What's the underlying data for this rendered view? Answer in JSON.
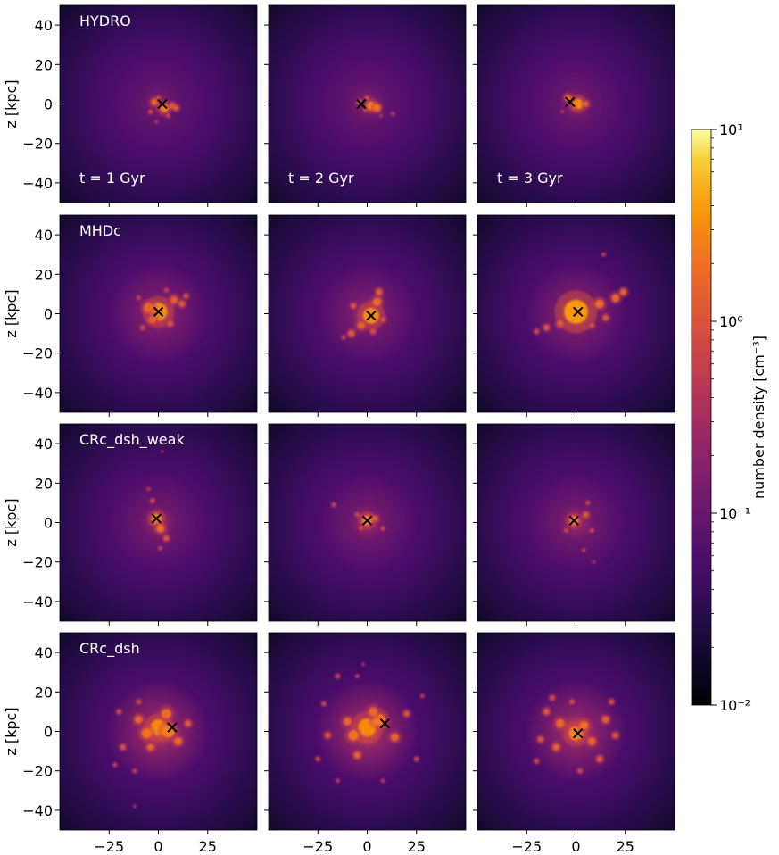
{
  "chart_data": {
    "type": "heatmap",
    "grid": {
      "rows": 4,
      "cols": 3
    },
    "xlabel": "",
    "ylabel": "z [kpc]",
    "xlim": [
      -50,
      50
    ],
    "ylim": [
      -50,
      50
    ],
    "xticks": [
      -25,
      0,
      25
    ],
    "yticks": [
      -40,
      -20,
      0,
      20,
      40
    ],
    "x_tick_labels": [
      "−25",
      "0",
      "25"
    ],
    "y_tick_labels": [
      "−40",
      "−20",
      "0",
      "20",
      "40"
    ],
    "row_labels": [
      "HYDRO",
      "MHDc",
      "CRc_dsh_weak",
      "CRc_dsh"
    ],
    "time_labels": [
      "t = 1 Gyr",
      "t = 2 Gyr",
      "t = 3 Gyr"
    ],
    "colorbar": {
      "label": "number density [cm⁻³]",
      "scale": "log",
      "range": [
        0.01,
        10
      ],
      "cmap": "inferno",
      "tick_labels": [
        "10⁻²",
        "10⁻¹",
        "10⁰",
        "10¹"
      ]
    },
    "marker": "x",
    "marker_color": "#000000",
    "panels": [
      {
        "row": 0,
        "col": 0,
        "marker": [
          2,
          0
        ],
        "halo": 0.4,
        "blobs": [
          [
            3,
            -2,
            2.2,
            3.2
          ],
          [
            -2,
            1,
            1.6,
            2.5
          ],
          [
            7,
            -1,
            1.5,
            2.2
          ],
          [
            -4,
            -4,
            1,
            1.6
          ],
          [
            5,
            -6,
            0.9,
            1.5
          ],
          [
            -1,
            -9,
            0.7,
            1.3
          ],
          [
            9,
            -2,
            1.3,
            2.0
          ],
          [
            0,
            3,
            1.0,
            1.6
          ]
        ]
      },
      {
        "row": 0,
        "col": 1,
        "marker": [
          -3,
          0
        ],
        "halo": 0.42,
        "blobs": [
          [
            2,
            -1,
            2.2,
            3.2
          ],
          [
            5,
            -2,
            1.8,
            2.7
          ],
          [
            -4,
            1,
            1.2,
            1.9
          ],
          [
            0,
            3,
            1.0,
            1.7
          ],
          [
            13,
            -5,
            0.8,
            1.3
          ],
          [
            7,
            -6,
            0.7,
            1.2
          ],
          [
            -1,
            -3,
            0.9,
            1.4
          ]
        ]
      },
      {
        "row": 0,
        "col": 2,
        "marker": [
          -3,
          1
        ],
        "halo": 0.44,
        "blobs": [
          [
            1,
            0,
            2.6,
            3.8
          ],
          [
            -4,
            3,
            1.6,
            2.5
          ],
          [
            5,
            0,
            1.4,
            2.2
          ],
          [
            -1,
            -2,
            1.0,
            1.7
          ],
          [
            -7,
            -4,
            0.7,
            1.2
          ]
        ]
      },
      {
        "row": 1,
        "col": 0,
        "marker": [
          0,
          1
        ],
        "halo": 0.62,
        "blobs": [
          [
            0,
            1,
            4.5,
            3.8
          ],
          [
            -5,
            3,
            2.5,
            2.3
          ],
          [
            8,
            7,
            2,
            2.0
          ],
          [
            12,
            5,
            1.6,
            1.8
          ],
          [
            -3,
            -3,
            2,
            2.1
          ],
          [
            6,
            -5,
            1.5,
            1.7
          ],
          [
            -8,
            -7,
            1.2,
            1.5
          ],
          [
            14,
            9,
            1.3,
            1.6
          ],
          [
            -10,
            8,
            1.0,
            1.3
          ],
          [
            4,
            12,
            1.0,
            1.4
          ]
        ]
      },
      {
        "row": 1,
        "col": 1,
        "marker": [
          2,
          -1
        ],
        "halo": 0.58,
        "blobs": [
          [
            2,
            -1,
            4,
            3.8
          ],
          [
            5,
            6,
            2.2,
            2.4
          ],
          [
            6,
            11,
            1.6,
            2.0
          ],
          [
            -3,
            -6,
            2.0,
            2.1
          ],
          [
            -8,
            -10,
            1.7,
            1.9
          ],
          [
            -7,
            4,
            1.4,
            1.7
          ],
          [
            3,
            -9,
            1.4,
            1.6
          ],
          [
            -12,
            -12,
            1.0,
            1.3
          ],
          [
            8,
            -3,
            1.4,
            1.6
          ]
        ]
      },
      {
        "row": 1,
        "col": 2,
        "marker": [
          1,
          1
        ],
        "halo": 0.64,
        "blobs": [
          [
            0,
            1,
            6,
            4.2
          ],
          [
            12,
            5,
            2.2,
            2.6
          ],
          [
            20,
            8,
            2.0,
            2.4
          ],
          [
            24,
            11,
            1.7,
            2.1
          ],
          [
            15,
            -2,
            1.5,
            1.8
          ],
          [
            -8,
            -5,
            1.7,
            2.0
          ],
          [
            -15,
            -7,
            1.5,
            1.8
          ],
          [
            -20,
            -9,
            1.2,
            1.5
          ],
          [
            8,
            -6,
            1.3,
            1.6
          ],
          [
            14,
            30,
            0.9,
            1.2
          ]
        ]
      },
      {
        "row": 2,
        "col": 0,
        "marker": [
          -1,
          2
        ],
        "halo": 0.5,
        "blobs": [
          [
            -1,
            2,
            2.6,
            3.3
          ],
          [
            1,
            -3,
            2.0,
            2.6
          ],
          [
            4,
            -8,
            1.4,
            1.9
          ],
          [
            -3,
            11,
            1.1,
            1.6
          ],
          [
            -5,
            17,
            0.8,
            1.3
          ],
          [
            1,
            -13,
            0.9,
            1.4
          ],
          [
            2,
            36,
            0.6,
            1.0
          ]
        ]
      },
      {
        "row": 2,
        "col": 1,
        "marker": [
          0,
          1
        ],
        "halo": 0.52,
        "blobs": [
          [
            0,
            1,
            2.6,
            3.3
          ],
          [
            4,
            2,
            1.4,
            2.0
          ],
          [
            -5,
            4,
            1.0,
            1.6
          ],
          [
            -17,
            9,
            1.0,
            1.5
          ],
          [
            8,
            -3,
            1.0,
            1.5
          ],
          [
            -3,
            -3,
            1.0,
            1.5
          ]
        ]
      },
      {
        "row": 2,
        "col": 2,
        "marker": [
          -1,
          1
        ],
        "halo": 0.52,
        "blobs": [
          [
            -1,
            1,
            2.4,
            3.1
          ],
          [
            5,
            4,
            1.4,
            2.0
          ],
          [
            6,
            10,
            1.0,
            1.6
          ],
          [
            -5,
            -4,
            1.0,
            1.5
          ],
          [
            8,
            -4,
            1.0,
            1.5
          ],
          [
            4,
            -14,
            0.8,
            1.3
          ],
          [
            9,
            -20,
            0.7,
            1.2
          ]
        ]
      },
      {
        "row": 3,
        "col": 0,
        "marker": [
          7,
          2
        ],
        "halo": 0.8,
        "blobs": [
          [
            0,
            2,
            4,
            3.6
          ],
          [
            5,
            0,
            3,
            3.2
          ],
          [
            -6,
            -1,
            2.5,
            2.8
          ],
          [
            4,
            9,
            2.5,
            2.6
          ],
          [
            -10,
            6,
            2.0,
            2.3
          ],
          [
            10,
            -5,
            2.0,
            2.4
          ],
          [
            -4,
            -8,
            1.8,
            2.2
          ],
          [
            -18,
            -8,
            1.4,
            1.7
          ],
          [
            15,
            4,
            1.6,
            1.9
          ],
          [
            -22,
            -17,
            1.0,
            1.3
          ],
          [
            -12,
            -20,
            1.0,
            1.3
          ],
          [
            -20,
            10,
            1.2,
            1.5
          ],
          [
            -10,
            15,
            1.2,
            1.4
          ],
          [
            -12,
            -38,
            0.7,
            1.0
          ]
        ]
      },
      {
        "row": 3,
        "col": 1,
        "marker": [
          9,
          4
        ],
        "halo": 0.82,
        "blobs": [
          [
            0,
            2,
            4.5,
            3.6
          ],
          [
            6,
            6,
            3,
            3.0
          ],
          [
            -7,
            -2,
            2.5,
            2.8
          ],
          [
            3,
            10,
            2.2,
            2.5
          ],
          [
            -10,
            5,
            2.0,
            2.3
          ],
          [
            14,
            -3,
            2.0,
            2.3
          ],
          [
            -5,
            -12,
            1.7,
            2.1
          ],
          [
            -20,
            -2,
            1.5,
            1.8
          ],
          [
            20,
            9,
            1.5,
            1.8
          ],
          [
            -22,
            14,
            1.1,
            1.4
          ],
          [
            -25,
            -14,
            1.1,
            1.4
          ],
          [
            25,
            -14,
            1.1,
            1.4
          ],
          [
            -15,
            28,
            1.1,
            1.4
          ],
          [
            -5,
            28,
            0.9,
            1.2
          ],
          [
            28,
            18,
            0.9,
            1.2
          ],
          [
            8,
            -25,
            0.9,
            1.2
          ],
          [
            -15,
            -25,
            0.9,
            1.2
          ],
          [
            -2,
            34,
            0.7,
            1.0
          ]
        ]
      },
      {
        "row": 3,
        "col": 2,
        "marker": [
          1,
          -1
        ],
        "halo": 0.78,
        "blobs": [
          [
            0,
            -1,
            3.5,
            3.3
          ],
          [
            4,
            3,
            2.2,
            2.6
          ],
          [
            -8,
            4,
            2.2,
            2.4
          ],
          [
            8,
            -5,
            2.0,
            2.3
          ],
          [
            -10,
            -8,
            1.8,
            2.1
          ],
          [
            15,
            6,
            1.8,
            2.1
          ],
          [
            -15,
            10,
            1.6,
            1.9
          ],
          [
            12,
            -14,
            1.6,
            1.9
          ],
          [
            -18,
            -4,
            1.5,
            1.8
          ],
          [
            20,
            -2,
            1.5,
            1.8
          ],
          [
            -12,
            17,
            1.3,
            1.6
          ],
          [
            18,
            15,
            1.3,
            1.6
          ],
          [
            -20,
            -15,
            1.2,
            1.5
          ],
          [
            2,
            -20,
            1.2,
            1.5
          ],
          [
            -2,
            15,
            1.2,
            1.5
          ]
        ]
      }
    ]
  }
}
